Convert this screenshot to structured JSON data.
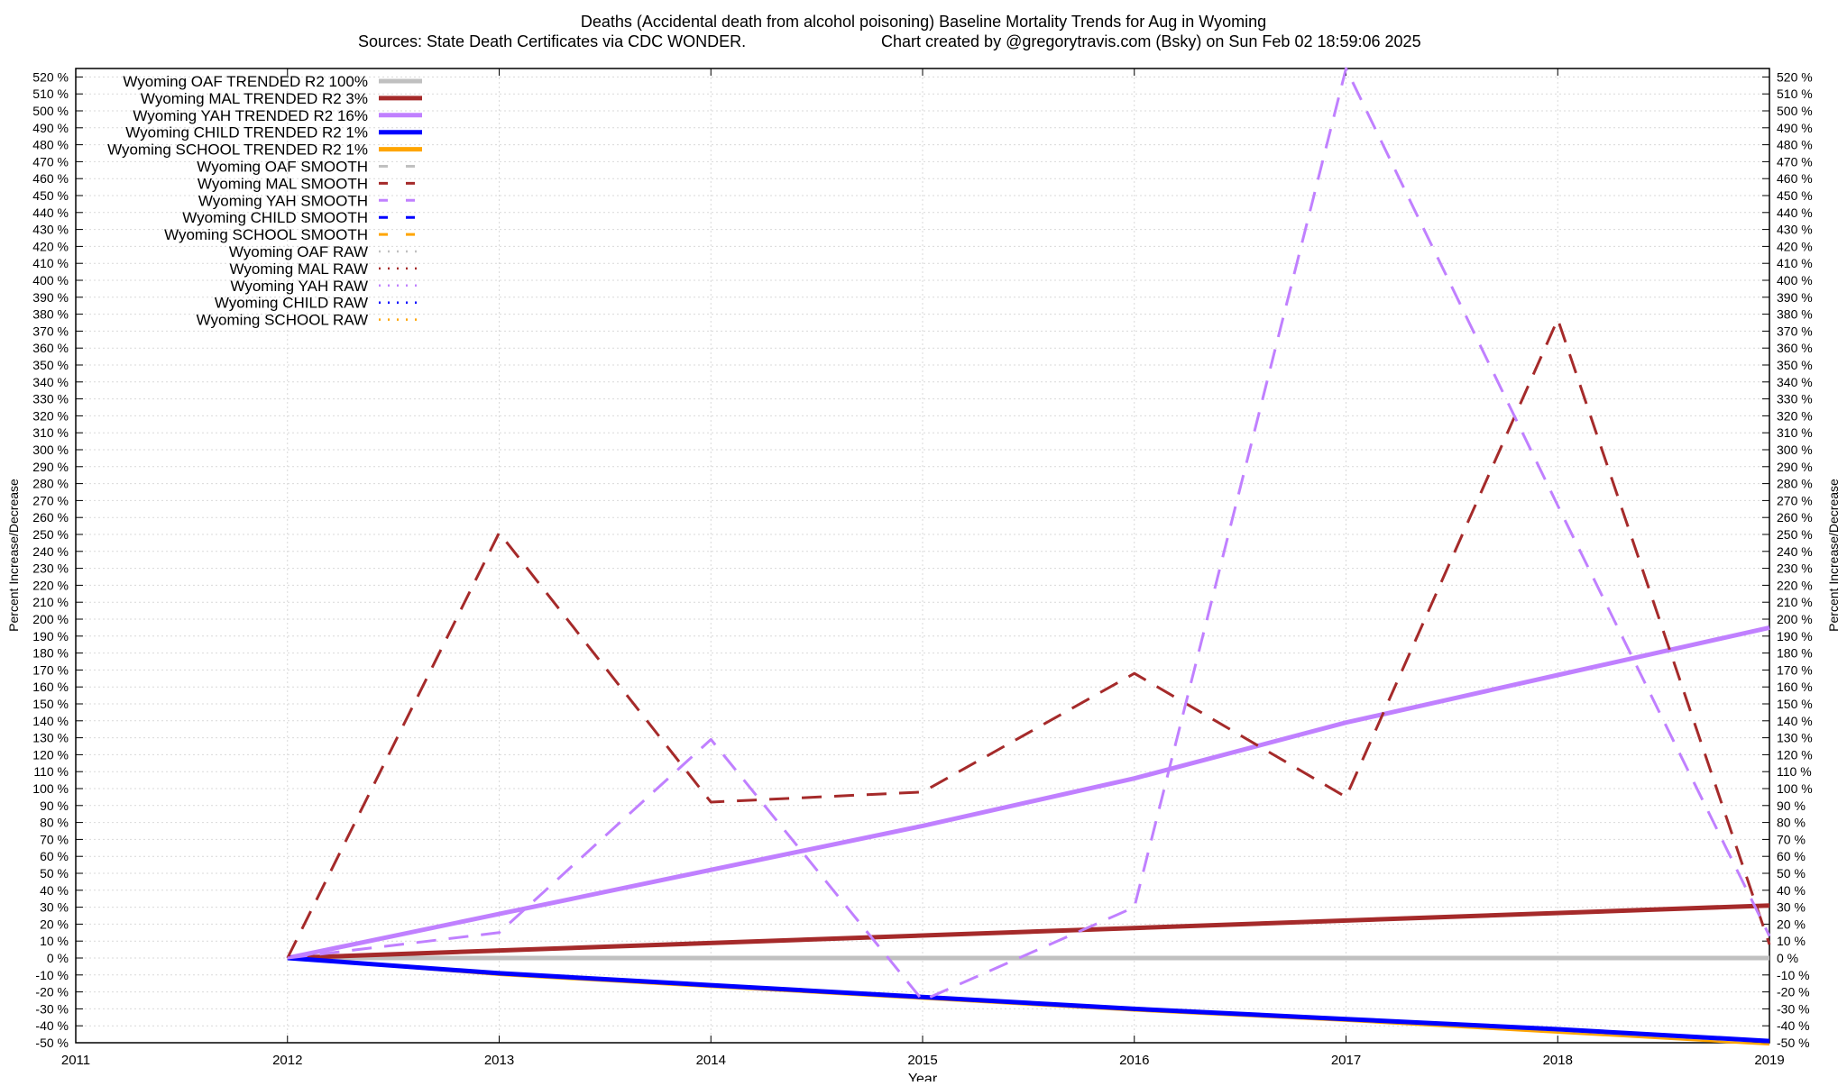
{
  "chart_data": {
    "type": "line",
    "title": "Deaths (Accidental death from alcohol poisoning)  Baseline Mortality Trends for Aug in Wyoming",
    "subtitle_left": "Sources: State Death Certificates via CDC WONDER.",
    "subtitle_right": "Chart created by @gregorytravis.com (Bsky) on Sun Feb 02 18:59:06 2025",
    "xlabel": "Year",
    "ylabel": "Percent Increase/Decrease",
    "y2label": "Percent Increase/Decrease",
    "xlim": [
      2011,
      2019
    ],
    "ylim": [
      -50,
      525
    ],
    "x_ticks": [
      2011,
      2012,
      2013,
      2014,
      2015,
      2016,
      2017,
      2018,
      2019
    ],
    "y_ticks": [
      -50,
      -40,
      -30,
      -20,
      -10,
      0,
      10,
      20,
      30,
      40,
      50,
      60,
      70,
      80,
      90,
      100,
      110,
      120,
      130,
      140,
      150,
      160,
      170,
      180,
      190,
      200,
      210,
      220,
      230,
      240,
      250,
      260,
      270,
      280,
      290,
      300,
      310,
      320,
      330,
      340,
      350,
      360,
      370,
      380,
      390,
      400,
      410,
      420,
      430,
      440,
      450,
      460,
      470,
      480,
      490,
      500,
      510,
      520
    ],
    "y_tick_suffix": " %",
    "grid": true,
    "legend_position": "top-left",
    "legend": [
      {
        "label": "Wyoming OAF TRENDED R2 100%",
        "color": "#c0c0c0",
        "style": "solid"
      },
      {
        "label": "Wyoming MAL TRENDED R2  3%",
        "color": "#a52a2a",
        "style": "solid"
      },
      {
        "label": "Wyoming YAH TRENDED R2  16%",
        "color": "#c080ff",
        "style": "solid"
      },
      {
        "label": "Wyoming CHILD TRENDED R2  1%",
        "color": "#0000ff",
        "style": "solid"
      },
      {
        "label": "Wyoming SCHOOL TRENDED R2  1%",
        "color": "#ffa500",
        "style": "solid"
      },
      {
        "label": "Wyoming OAF SMOOTH",
        "color": "#c0c0c0",
        "style": "dashed"
      },
      {
        "label": "Wyoming MAL SMOOTH",
        "color": "#a52a2a",
        "style": "dashed"
      },
      {
        "label": "Wyoming YAH SMOOTH",
        "color": "#c080ff",
        "style": "dashed"
      },
      {
        "label": "Wyoming CHILD SMOOTH",
        "color": "#0000ff",
        "style": "dashed"
      },
      {
        "label": "Wyoming SCHOOL SMOOTH",
        "color": "#ffa500",
        "style": "dashed"
      },
      {
        "label": "Wyoming OAF RAW",
        "color": "#c0c0c0",
        "style": "dotted"
      },
      {
        "label": "Wyoming MAL RAW",
        "color": "#a52a2a",
        "style": "dotted"
      },
      {
        "label": "Wyoming YAH RAW",
        "color": "#c080ff",
        "style": "dotted"
      },
      {
        "label": "Wyoming CHILD RAW",
        "color": "#0000ff",
        "style": "dotted"
      },
      {
        "label": "Wyoming SCHOOL RAW",
        "color": "#ffa500",
        "style": "dotted"
      }
    ],
    "series": [
      {
        "name": "Wyoming OAF TRENDED R2 100%",
        "color": "#c0c0c0",
        "style": "solid",
        "x": [
          2012,
          2019
        ],
        "y": [
          0,
          0
        ]
      },
      {
        "name": "Wyoming MAL TRENDED R2  3%",
        "color": "#a52a2a",
        "style": "solid",
        "x": [
          2012,
          2019
        ],
        "y": [
          0,
          31
        ]
      },
      {
        "name": "Wyoming YAH TRENDED R2  16%",
        "color": "#c080ff",
        "style": "solid",
        "x": [
          2012,
          2013,
          2014,
          2015,
          2016,
          2017,
          2018,
          2019
        ],
        "y": [
          0,
          26,
          52,
          78,
          106,
          139,
          167,
          195
        ]
      },
      {
        "name": "Wyoming SCHOOL TRENDED R2  1%",
        "color": "#ffa500",
        "style": "solid",
        "x": [
          2012,
          2013,
          2014,
          2015,
          2016,
          2017,
          2018,
          2019
        ],
        "y": [
          0,
          -10,
          -17,
          -24,
          -31,
          -37,
          -44,
          -51
        ]
      },
      {
        "name": "Wyoming CHILD TRENDED R2  1%",
        "color": "#0000ff",
        "style": "solid",
        "x": [
          2012,
          2013,
          2014,
          2015,
          2016,
          2017,
          2018,
          2019
        ],
        "y": [
          0,
          -9,
          -16,
          -23,
          -30,
          -36,
          -42,
          -49
        ]
      },
      {
        "name": "Wyoming MAL SMOOTH",
        "color": "#a52a2a",
        "style": "dashed",
        "x": [
          2012,
          2013,
          2014,
          2015,
          2016,
          2017,
          2018,
          2019
        ],
        "y": [
          0,
          251,
          92,
          98,
          168,
          95,
          377,
          8
        ]
      },
      {
        "name": "Wyoming YAH SMOOTH",
        "color": "#c080ff",
        "style": "dashed",
        "x": [
          2012,
          2013,
          2014,
          2015,
          2016,
          2017,
          2018,
          2019
        ],
        "y": [
          0,
          15,
          129,
          -25,
          30,
          525,
          267,
          13
        ]
      }
    ]
  }
}
